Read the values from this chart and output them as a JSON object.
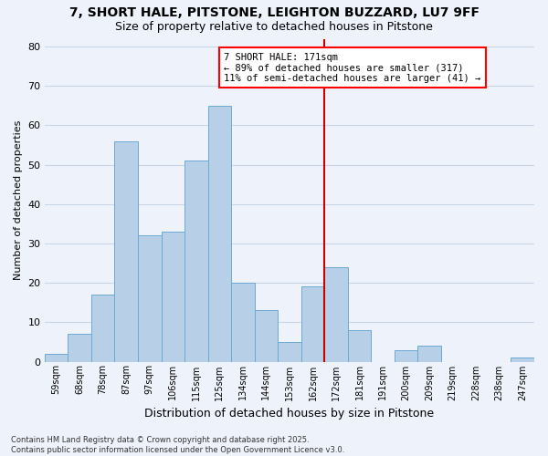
{
  "title_line1": "7, SHORT HALE, PITSTONE, LEIGHTON BUZZARD, LU7 9FF",
  "title_line2": "Size of property relative to detached houses in Pitstone",
  "xlabel": "Distribution of detached houses by size in Pitstone",
  "ylabel": "Number of detached properties",
  "categories": [
    "59sqm",
    "68sqm",
    "78sqm",
    "87sqm",
    "97sqm",
    "106sqm",
    "115sqm",
    "125sqm",
    "134sqm",
    "144sqm",
    "153sqm",
    "162sqm",
    "172sqm",
    "181sqm",
    "191sqm",
    "200sqm",
    "209sqm",
    "219sqm",
    "228sqm",
    "238sqm",
    "247sqm"
  ],
  "values": [
    2,
    7,
    17,
    56,
    32,
    33,
    51,
    65,
    20,
    13,
    5,
    19,
    24,
    8,
    0,
    3,
    4,
    0,
    0,
    0,
    1
  ],
  "bar_color": "#b8cfe8",
  "bar_edge_color": "#6aaad4",
  "grid_color": "#c8d4e8",
  "background_color": "#eef2fa",
  "vline_x_idx": 12,
  "vline_color": "#cc0000",
  "annotation_text": "7 SHORT HALE: 171sqm\n← 89% of detached houses are smaller (317)\n11% of semi-detached houses are larger (41) →",
  "footer_text": "Contains HM Land Registry data © Crown copyright and database right 2025.\nContains public sector information licensed under the Open Government Licence v3.0.",
  "ylim": [
    0,
    82
  ],
  "yticks": [
    0,
    10,
    20,
    30,
    40,
    50,
    60,
    70,
    80
  ]
}
